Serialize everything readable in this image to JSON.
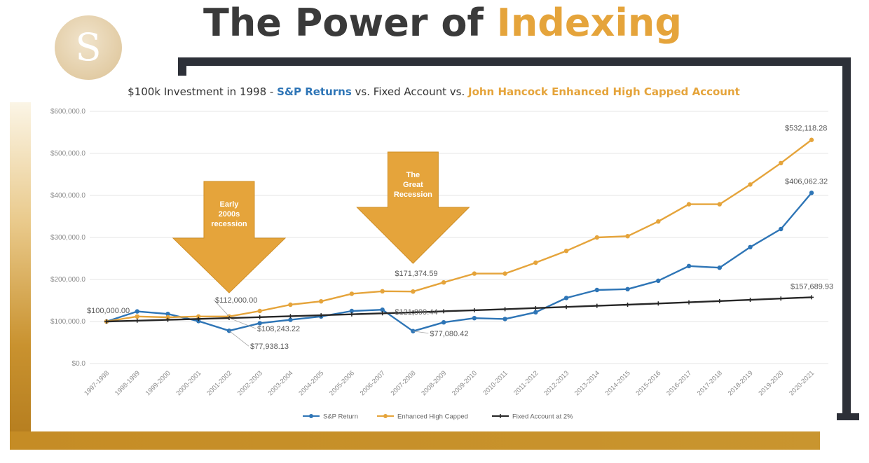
{
  "page": {
    "title_part1": "The Power of",
    "title_part2": "Indexing",
    "logo_letter": "S",
    "colors": {
      "title_dark": "#3a3a3a",
      "title_gold": "#e5a43b",
      "frame_dark": "#2d3038",
      "frame_gold": "#c58c25"
    }
  },
  "chart_data": {
    "type": "line",
    "title_segments": [
      {
        "text": "$100k Investment in 1998 - ",
        "color": "#333333"
      },
      {
        "text": "S&P Returns",
        "color": "#2e75b6"
      },
      {
        "text": " vs. Fixed Account vs. ",
        "color": "#333333"
      },
      {
        "text": "John Hancock Enhanced High Capped Account",
        "color": "#e5a43b"
      }
    ],
    "categories": [
      "1997-1998",
      "1998-1999",
      "1999-2000",
      "2000-2001",
      "2001-2002",
      "2002-2003",
      "2003-2004",
      "2004-2005",
      "2005-2006",
      "2006-2007",
      "2007-2008",
      "2008-2009",
      "2009-2010",
      "2010-2011",
      "2011-2012",
      "2012-2013",
      "2013-2014",
      "2014-2015",
      "2015-2016",
      "2016-2017",
      "2017-2018",
      "2018-2019",
      "2019-2020",
      "2020-2021"
    ],
    "y_ticks": [
      0,
      100000,
      200000,
      300000,
      400000,
      500000,
      600000
    ],
    "y_tick_labels": [
      "$0.0",
      "$100,000.0",
      "$200,000.0",
      "$300,000.0",
      "$400,000.0",
      "$500,000.0",
      "$600,000.0"
    ],
    "ylim": [
      0,
      600000
    ],
    "grid": true,
    "legend_position": "bottom",
    "series": [
      {
        "name": "S&P Return",
        "color": "#2e75b6",
        "marker": "circle",
        "values": [
          100000,
          124000,
          118000,
          101000,
          77938.13,
          96000,
          104000,
          112000,
          125000,
          128000,
          77080.42,
          98000,
          108000,
          106000,
          122000,
          156000,
          175000,
          177000,
          197000,
          232000,
          228000,
          277000,
          320000,
          406062.32
        ]
      },
      {
        "name": "Enhanced High Capped",
        "color": "#e5a43b",
        "marker": "circle",
        "values": [
          100000,
          112000,
          110000,
          112000,
          112000,
          125000,
          140000,
          148000,
          166000,
          172000,
          171374.59,
          193000,
          214000,
          214000,
          240000,
          268000,
          300000,
          303000,
          338000,
          379000,
          379000,
          426000,
          477000,
          532118.28
        ]
      },
      {
        "name": "Fixed Account at 2%",
        "color": "#262626",
        "marker": "star",
        "values": [
          100000,
          102000,
          104040,
          106121,
          108243.22,
          110408,
          112616,
          114869,
          117166,
          119509,
          121899.44,
          124337,
          126824,
          129361,
          131948,
          134587,
          137279,
          140024,
          142825,
          145681,
          148595,
          151567,
          154598,
          157689.93
        ]
      }
    ],
    "data_labels": [
      {
        "series": 0,
        "index": 0,
        "text": "$100,000.00"
      },
      {
        "series": 1,
        "index": 4,
        "text": "$112,000.00"
      },
      {
        "series": 2,
        "index": 4,
        "text": "$108,243.22"
      },
      {
        "series": 0,
        "index": 4,
        "text": "$77,938.13"
      },
      {
        "series": 1,
        "index": 10,
        "text": "$171,374.59"
      },
      {
        "series": 2,
        "index": 10,
        "text": "$121,899.44"
      },
      {
        "series": 0,
        "index": 10,
        "text": "$77,080.42"
      },
      {
        "series": 1,
        "index": 23,
        "text": "$532,118.28"
      },
      {
        "series": 0,
        "index": 23,
        "text": "$406,062.32"
      },
      {
        "series": 2,
        "index": 23,
        "text": "$157,689.93"
      }
    ],
    "annotations": [
      {
        "text_lines": [
          "Early",
          "2000s",
          "recession"
        ],
        "points_to_index": 4,
        "color": "#e5a43b"
      },
      {
        "text_lines": [
          "The",
          "Great",
          "Recession"
        ],
        "points_to_index": 10,
        "color": "#e5a43b"
      }
    ]
  }
}
